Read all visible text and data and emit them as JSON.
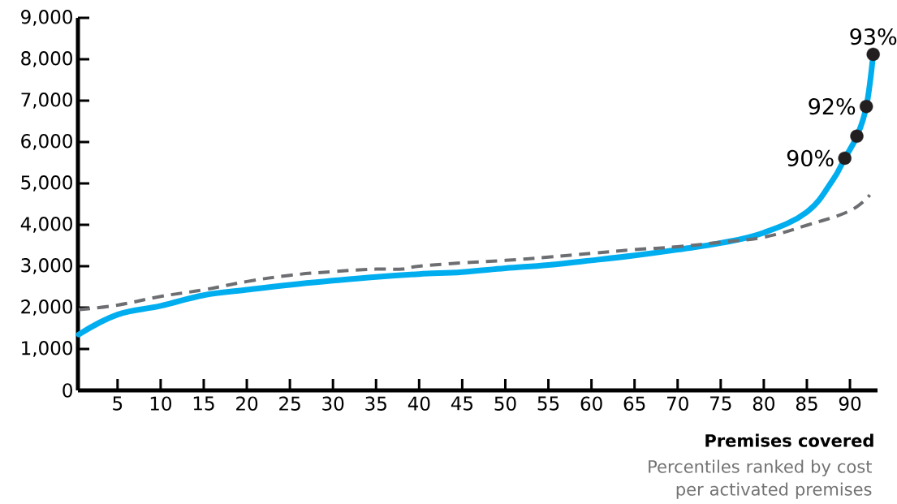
{
  "chart_data": {
    "type": "line",
    "xlabel": "Premises covered",
    "annotations": [
      "Percentiles ranked by cost per activated premises",
      {
        "text": "90%",
        "x": 89.4,
        "y": 5610
      },
      {
        "text": "92%",
        "x": 91.9,
        "y": 6860
      },
      {
        "text": "93%",
        "x": 92.7,
        "y": 8120
      }
    ],
    "xlim": [
      0.4,
      93.2
    ],
    "ylim": [
      0,
      9000
    ],
    "xticks": [
      5,
      10,
      15,
      20,
      25,
      30,
      35,
      40,
      45,
      50,
      55,
      60,
      65,
      70,
      75,
      80,
      85,
      90
    ],
    "yticks": [
      0,
      {
        "value": 1000,
        "label": "1,000"
      },
      {
        "value": 2000,
        "label": "2,000"
      },
      {
        "value": 3000,
        "label": "3,000"
      },
      {
        "value": 4000,
        "label": "4,000"
      },
      {
        "value": 5000,
        "label": "5,000"
      },
      {
        "value": 6000,
        "label": "6,000"
      },
      {
        "value": 7000,
        "label": "7,000"
      },
      {
        "value": 8000,
        "label": "8,000"
      },
      {
        "value": 9000,
        "label": "9,000"
      }
    ],
    "series": [
      {
        "color": "#00aeef",
        "line_style": "solid",
        "x": [
          0.5,
          5,
          10,
          15,
          20,
          25,
          30,
          35,
          40,
          45,
          50,
          55,
          60,
          65,
          70,
          75,
          80,
          85,
          88,
          89.4,
          90.8,
          91.9,
          92.7
        ],
        "values": [
          1350,
          1830,
          2040,
          2300,
          2430,
          2550,
          2650,
          2740,
          2810,
          2860,
          2950,
          3030,
          3140,
          3260,
          3400,
          3560,
          3810,
          4310,
          5080,
          5610,
          6140,
          6860,
          8120
        ]
      },
      {
        "color": "#6d6e71",
        "line_style": "dashed",
        "x": [
          0.5,
          5,
          10,
          15,
          20,
          25,
          30,
          35,
          38,
          40,
          45,
          50,
          55,
          60,
          65,
          70,
          75,
          80,
          85,
          90,
          92.3
        ],
        "values": [
          1950,
          2060,
          2270,
          2430,
          2630,
          2780,
          2870,
          2930,
          2930,
          3000,
          3080,
          3140,
          3220,
          3310,
          3400,
          3470,
          3580,
          3700,
          3990,
          4340,
          4720
        ]
      },
      {
        "type": "scatter",
        "color": "#231f20",
        "marker": "circle",
        "x": [
          89.4,
          90.8,
          91.9,
          92.7
        ],
        "values": [
          5610,
          6140,
          6860,
          8120
        ]
      }
    ]
  }
}
